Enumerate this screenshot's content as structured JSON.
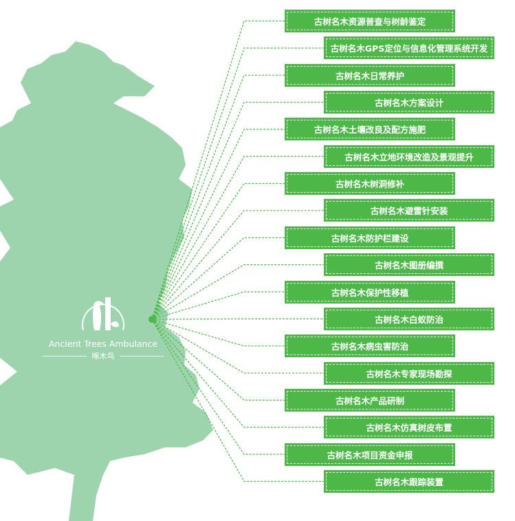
{
  "colors": {
    "tree": "#9dd4ad",
    "box": "#4db848",
    "line": "#4db848"
  },
  "logo": {
    "icon": "woodpecker-tree-logo-icon",
    "english": "Ancient Trees Ambulance",
    "chinese": "啄木鸟"
  },
  "services": [
    "古树名木资源普查与树龄鉴定",
    "古树名木GPS定位与信息化管理系统开发",
    "古树名木日常养护",
    "古树名木方案设计",
    "古树名木土壤改良及配方施肥",
    "古树名木立地环境改造及景观提升",
    "古树名木树洞修补",
    "古树名木避雷针安装",
    "古树名木防护栏建设",
    "古树名木图册编撰",
    "古树名木保护性移植",
    "古树名木白蚁防治",
    "古树名木病虫害防治",
    "古树名木专家现场勘探",
    "古树名木产品研制",
    "古树名木仿真树皮布置",
    "古树名木项目资金申报",
    "古树名木跟踪装置"
  ]
}
